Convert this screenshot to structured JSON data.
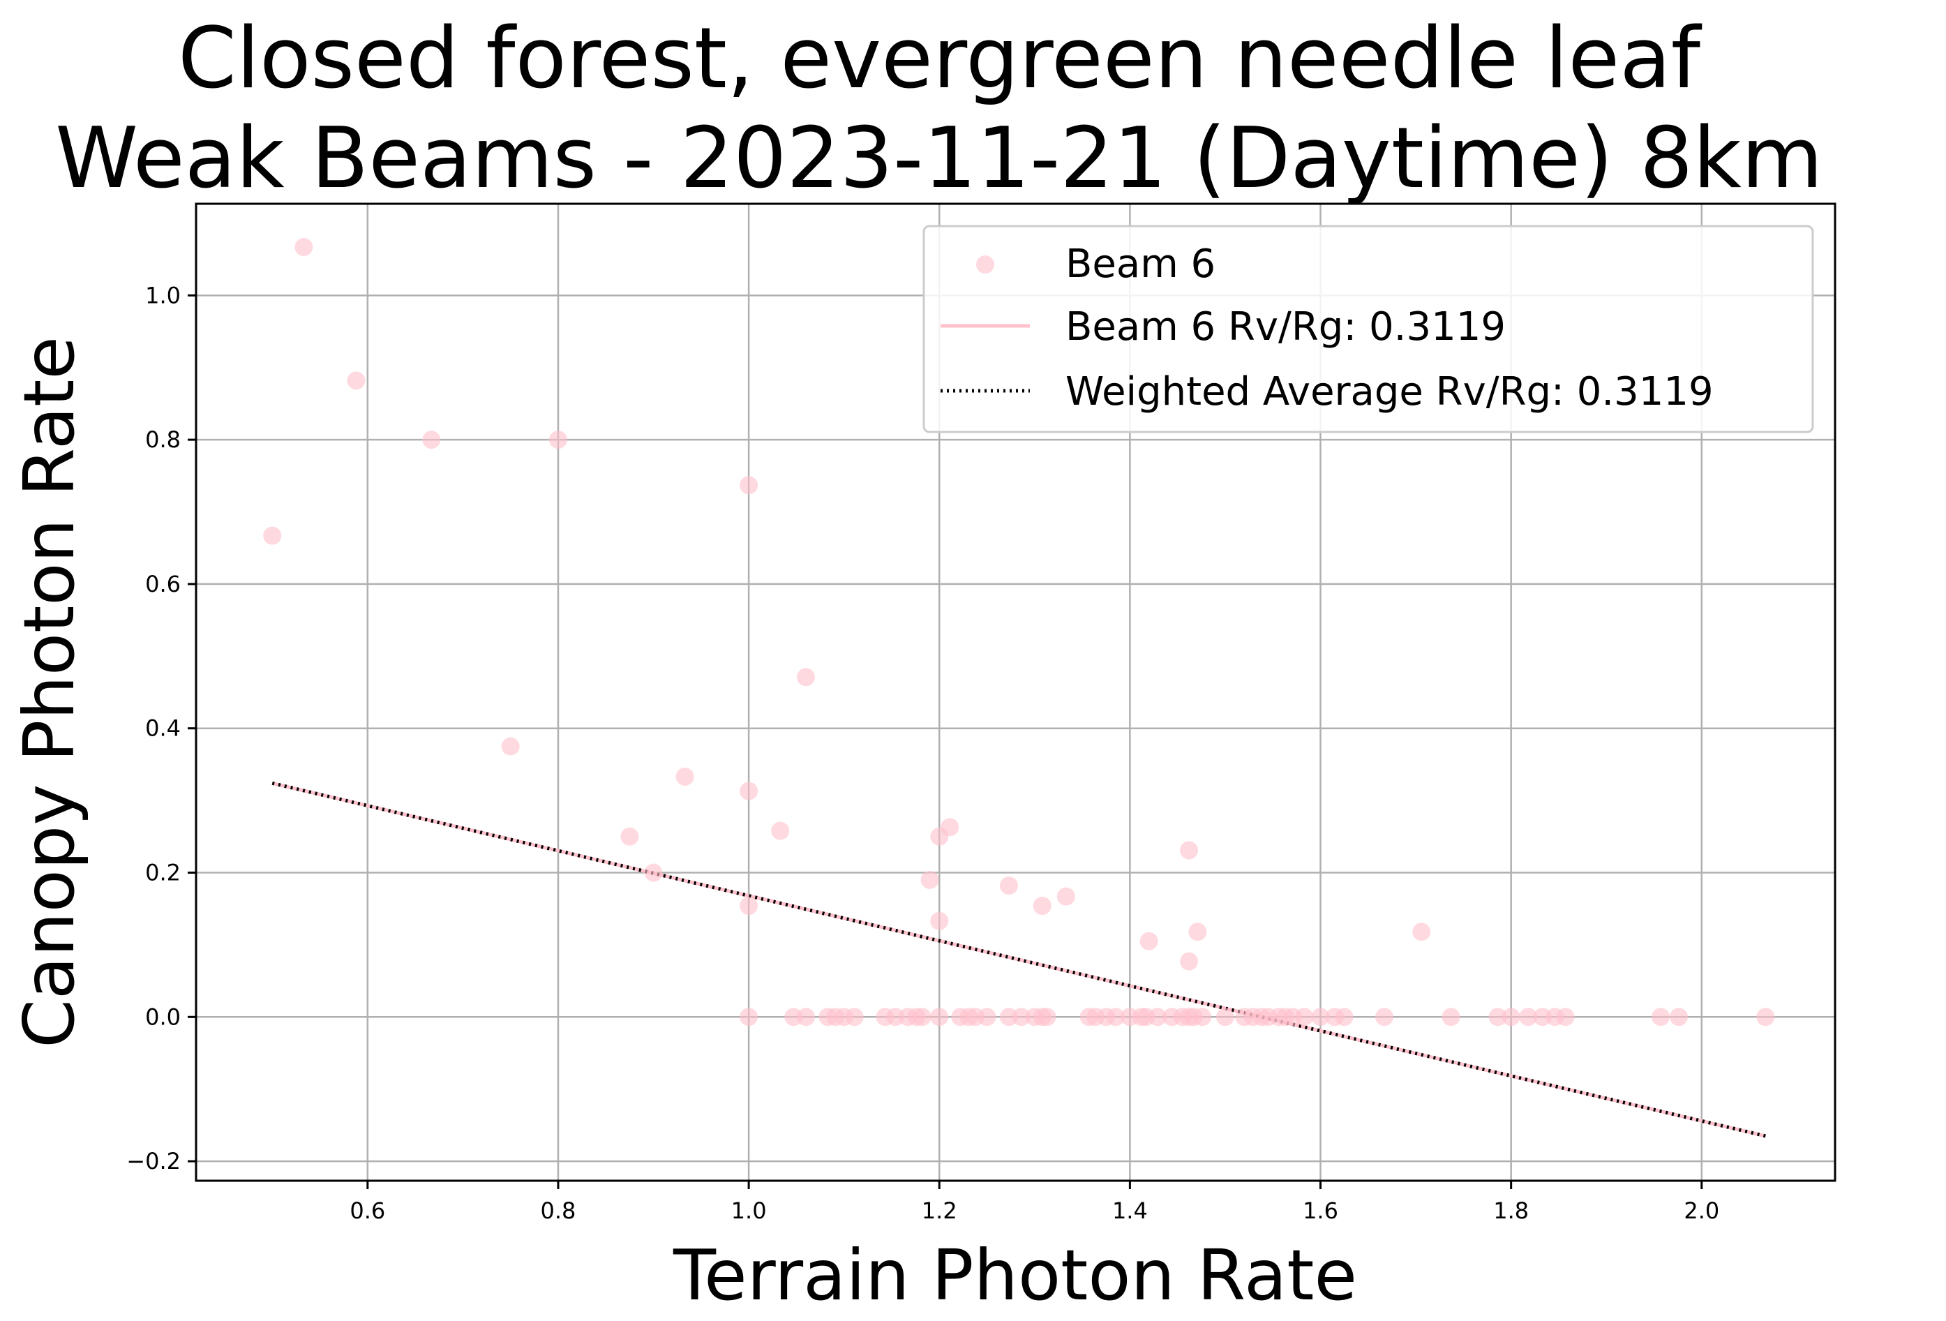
{
  "chart_data": {
    "type": "scatter",
    "title_lines": [
      "Closed forest, evergreen needle leaf",
      "Weak Beams - 2023-11-21 (Daytime) 8km"
    ],
    "xlabel": "Terrain Photon Rate",
    "ylabel": "Canopy Photon Rate",
    "xlim": [
      0.42,
      2.14
    ],
    "ylim": [
      -0.227,
      1.127
    ],
    "xticks": [
      0.6,
      0.8,
      1.0,
      1.2,
      1.4,
      1.6,
      1.8,
      2.0
    ],
    "xtick_labels": [
      "0.6",
      "0.8",
      "1.0",
      "1.2",
      "1.4",
      "1.6",
      "1.8",
      "2.0"
    ],
    "yticks": [
      -0.2,
      0.0,
      0.2,
      0.4,
      0.6,
      0.8,
      1.0
    ],
    "ytick_labels": [
      "−0.2",
      "0.0",
      "0.2",
      "0.4",
      "0.6",
      "0.8",
      "1.0"
    ],
    "grid": true,
    "legend_position": "top-right",
    "colors": {
      "points": "#ffc0cb",
      "beam_line": "#ffc0cb",
      "avg_line": "#000000"
    },
    "series": [
      {
        "name": "Beam 6",
        "kind": "scatter",
        "points": [
          [
            0.5,
            0.667
          ],
          [
            0.533,
            1.067
          ],
          [
            0.588,
            0.882
          ],
          [
            0.667,
            0.8
          ],
          [
            0.75,
            0.375
          ],
          [
            0.8,
            0.8
          ],
          [
            0.875,
            0.25
          ],
          [
            0.9,
            0.2
          ],
          [
            0.933,
            0.333
          ],
          [
            1.0,
            0.737
          ],
          [
            1.0,
            0.313
          ],
          [
            1.0,
            0.154
          ],
          [
            1.0,
            0.0
          ],
          [
            1.033,
            0.258
          ],
          [
            1.06,
            0.471
          ],
          [
            1.047,
            0.0
          ],
          [
            1.06,
            0.0
          ],
          [
            1.083,
            0.0
          ],
          [
            1.091,
            0.0
          ],
          [
            1.1,
            0.0
          ],
          [
            1.111,
            0.0
          ],
          [
            1.143,
            0.0
          ],
          [
            1.154,
            0.0
          ],
          [
            1.167,
            0.0
          ],
          [
            1.176,
            0.0
          ],
          [
            1.182,
            0.0
          ],
          [
            1.19,
            0.19
          ],
          [
            1.2,
            0.25
          ],
          [
            1.2,
            0.133
          ],
          [
            1.2,
            0.0
          ],
          [
            1.211,
            0.263
          ],
          [
            1.222,
            0.0
          ],
          [
            1.231,
            0.0
          ],
          [
            1.238,
            0.0
          ],
          [
            1.25,
            0.0
          ],
          [
            1.273,
            0.182
          ],
          [
            1.273,
            0.0
          ],
          [
            1.286,
            0.0
          ],
          [
            1.3,
            0.0
          ],
          [
            1.308,
            0.154
          ],
          [
            1.308,
            0.0
          ],
          [
            1.313,
            0.0
          ],
          [
            1.333,
            0.167
          ],
          [
            1.357,
            0.0
          ],
          [
            1.364,
            0.0
          ],
          [
            1.375,
            0.0
          ],
          [
            1.385,
            0.0
          ],
          [
            1.4,
            0.0
          ],
          [
            1.412,
            0.0
          ],
          [
            1.417,
            0.0
          ],
          [
            1.42,
            0.105
          ],
          [
            1.429,
            0.0
          ],
          [
            1.444,
            0.0
          ],
          [
            1.455,
            0.0
          ],
          [
            1.462,
            0.231
          ],
          [
            1.462,
            0.077
          ],
          [
            1.462,
            0.0
          ],
          [
            1.467,
            0.0
          ],
          [
            1.471,
            0.118
          ],
          [
            1.476,
            0.0
          ],
          [
            1.5,
            0.0
          ],
          [
            1.52,
            0.0
          ],
          [
            1.529,
            0.0
          ],
          [
            1.538,
            0.0
          ],
          [
            1.545,
            0.0
          ],
          [
            1.556,
            0.0
          ],
          [
            1.563,
            0.0
          ],
          [
            1.571,
            0.0
          ],
          [
            1.583,
            0.0
          ],
          [
            1.6,
            0.0
          ],
          [
            1.615,
            0.0
          ],
          [
            1.625,
            0.0
          ],
          [
            1.667,
            0.0
          ],
          [
            1.706,
            0.118
          ],
          [
            1.737,
            0.0
          ],
          [
            1.786,
            0.0
          ],
          [
            1.8,
            0.0
          ],
          [
            1.818,
            0.0
          ],
          [
            1.833,
            0.0
          ],
          [
            1.846,
            0.0
          ],
          [
            1.857,
            0.0
          ],
          [
            1.957,
            0.0
          ],
          [
            1.976,
            0.0
          ],
          [
            2.067,
            0.0
          ]
        ]
      },
      {
        "name": "Beam 6 Rv/Rg: 0.3119",
        "kind": "line",
        "style": "solid",
        "x": [
          0.5,
          2.067
        ],
        "y": [
          0.324,
          -0.165
        ]
      },
      {
        "name": "Weighted Average Rv/Rg: 0.3119",
        "kind": "line",
        "style": "dotted",
        "x": [
          0.5,
          2.067
        ],
        "y": [
          0.324,
          -0.165
        ]
      }
    ]
  }
}
